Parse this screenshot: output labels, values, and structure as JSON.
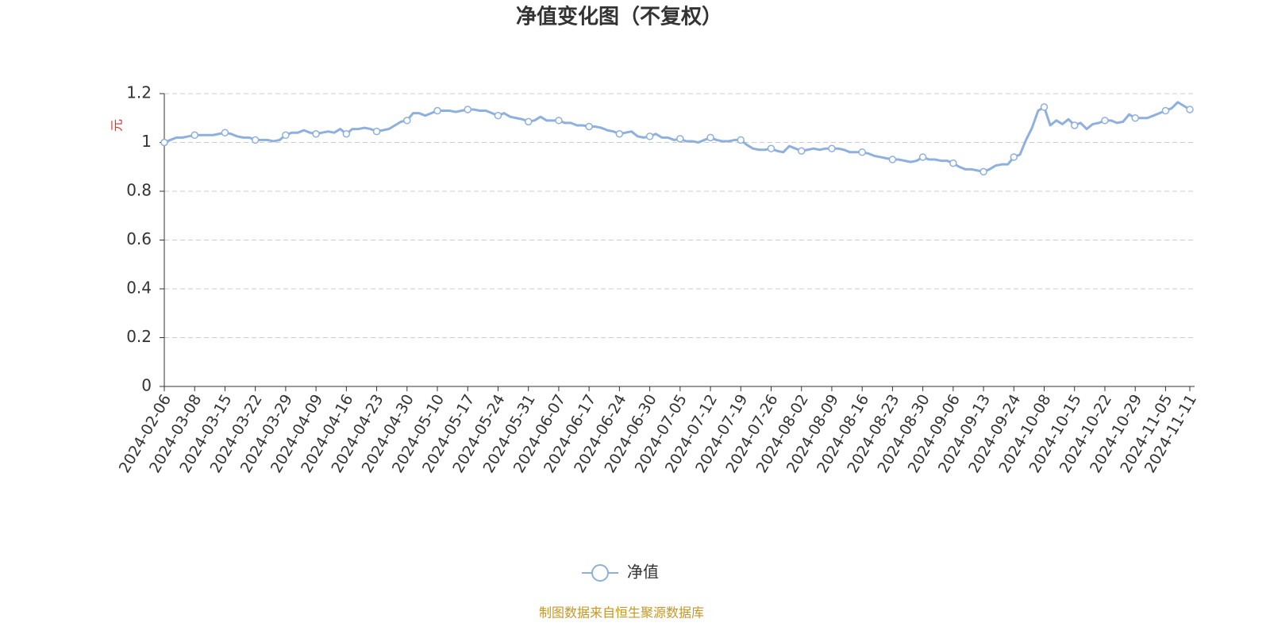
{
  "chart_data": {
    "type": "line",
    "title": "净值变化图（不复权）",
    "y_label": "元",
    "source": "制图数据来自恒生聚源数据库",
    "categories": [
      "2024-02-06",
      null,
      null,
      null,
      null,
      "2024-03-08",
      null,
      null,
      null,
      null,
      "2024-03-15",
      null,
      null,
      null,
      null,
      "2024-03-22",
      null,
      null,
      null,
      null,
      "2024-03-29",
      null,
      null,
      null,
      null,
      "2024-04-09",
      null,
      null,
      null,
      null,
      "2024-04-16",
      null,
      null,
      null,
      null,
      "2024-04-23",
      null,
      null,
      null,
      null,
      "2024-04-30",
      null,
      null,
      null,
      null,
      "2024-05-10",
      null,
      null,
      null,
      null,
      "2024-05-17",
      null,
      null,
      null,
      null,
      "2024-05-24",
      null,
      null,
      null,
      null,
      "2024-05-31",
      null,
      null,
      null,
      null,
      "2024-06-07",
      null,
      null,
      null,
      null,
      "2024-06-17",
      null,
      null,
      null,
      null,
      "2024-06-24",
      null,
      null,
      null,
      null,
      "2024-06-30",
      null,
      null,
      null,
      null,
      "2024-07-05",
      null,
      null,
      null,
      null,
      "2024-07-12",
      null,
      null,
      null,
      null,
      "2024-07-19",
      null,
      null,
      null,
      null,
      "2024-07-26",
      null,
      null,
      null,
      null,
      "2024-08-02",
      null,
      null,
      null,
      null,
      "2024-08-09",
      null,
      null,
      null,
      null,
      "2024-08-16",
      null,
      null,
      null,
      null,
      "2024-08-23",
      null,
      null,
      null,
      null,
      "2024-08-30",
      null,
      null,
      null,
      null,
      "2024-09-06",
      null,
      null,
      null,
      null,
      "2024-09-13",
      null,
      null,
      null,
      null,
      "2024-09-24",
      null,
      null,
      null,
      null,
      "2024-10-08",
      null,
      null,
      null,
      null,
      "2024-10-15",
      null,
      null,
      null,
      null,
      "2024-10-22",
      null,
      null,
      null,
      null,
      "2024-10-29",
      null,
      null,
      null,
      null,
      "2024-11-05",
      null,
      null,
      null,
      "2024-11-11"
    ],
    "series": [
      {
        "name": "净值",
        "color": "#8eb0de",
        "values": [
          1.0,
          1.01,
          1.02,
          1.02,
          1.025,
          1.03,
          1.03,
          1.03,
          1.03,
          1.035,
          1.04,
          1.035,
          1.025,
          1.02,
          1.02,
          1.01,
          1.01,
          1.01,
          1.005,
          1.01,
          1.03,
          1.04,
          1.04,
          1.05,
          1.04,
          1.035,
          1.04,
          1.045,
          1.04,
          1.055,
          1.035,
          1.055,
          1.055,
          1.06,
          1.055,
          1.045,
          1.05,
          1.055,
          1.07,
          1.085,
          1.09,
          1.12,
          1.12,
          1.11,
          1.12,
          1.13,
          1.13,
          1.13,
          1.125,
          1.13,
          1.135,
          1.135,
          1.13,
          1.13,
          1.12,
          1.11,
          1.12,
          1.105,
          1.1,
          1.095,
          1.085,
          1.09,
          1.105,
          1.09,
          1.09,
          1.09,
          1.08,
          1.08,
          1.07,
          1.07,
          1.065,
          1.065,
          1.06,
          1.05,
          1.045,
          1.035,
          1.04,
          1.045,
          1.025,
          1.02,
          1.025,
          1.035,
          1.02,
          1.02,
          1.01,
          1.015,
          1.005,
          1.005,
          1.0,
          1.01,
          1.02,
          1.01,
          1.005,
          1.005,
          1.01,
          1.01,
          0.99,
          0.975,
          0.97,
          0.97,
          0.975,
          0.965,
          0.96,
          0.985,
          0.975,
          0.965,
          0.97,
          0.975,
          0.97,
          0.975,
          0.975,
          0.975,
          0.97,
          0.96,
          0.96,
          0.96,
          0.955,
          0.945,
          0.94,
          0.935,
          0.93,
          0.93,
          0.925,
          0.92,
          0.925,
          0.94,
          0.93,
          0.93,
          0.925,
          0.925,
          0.915,
          0.9,
          0.89,
          0.89,
          0.885,
          0.88,
          0.89,
          0.905,
          0.91,
          0.91,
          0.94,
          0.95,
          1.01,
          1.06,
          1.13,
          1.145,
          1.07,
          1.09,
          1.075,
          1.095,
          1.07,
          1.08,
          1.055,
          1.075,
          1.08,
          1.09,
          1.09,
          1.08,
          1.085,
          1.115,
          1.1,
          1.1,
          1.1,
          1.11,
          1.12,
          1.13,
          1.14,
          1.165,
          1.15,
          1.135
        ]
      }
    ],
    "ylim": [
      0,
      1.2
    ],
    "yticks": [
      0,
      0.2,
      0.4,
      0.6,
      0.8,
      1,
      1.2
    ],
    "grid": true
  }
}
